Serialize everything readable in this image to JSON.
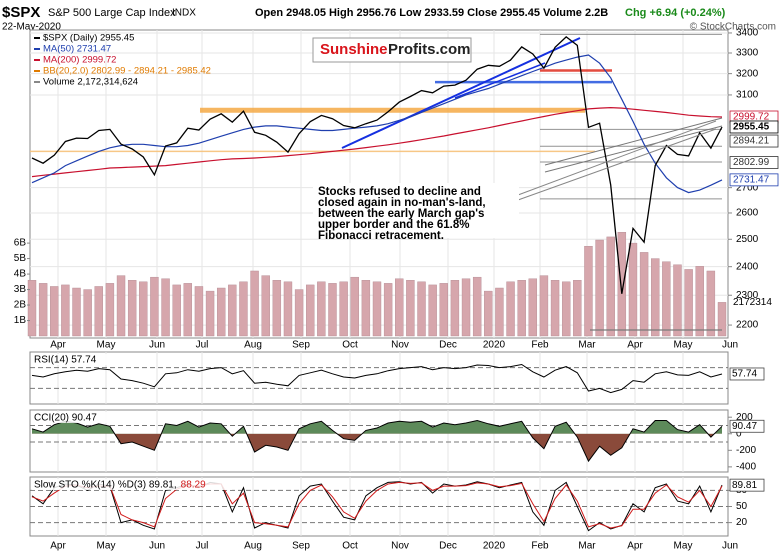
{
  "header": {
    "title": "$SPX",
    "subtitle": "S&P 500 Large Cap Index",
    "exchange": "INDX",
    "date": "22-May-2020",
    "quote": "Open 2948.05 High 2956.76 Low 2933.59 Close 2955.45 Volume 2.2B",
    "change": "Chg +6.94 (+0.24%)",
    "source": "© StockCharts.com",
    "logo": [
      "Sunshine",
      "Profits.com"
    ],
    "annotation": [
      "Stocks refused to decline and",
      "closed again in no-man's-land,",
      "between the early March gap's",
      "upper border and the 61.8%",
      "Fibonacci retracement."
    ]
  },
  "chart_data": [
    {
      "type": "line",
      "log_scale": true,
      "ylim": [
        2158,
        3415
      ],
      "yticks": [
        2200,
        2300,
        2400,
        2500,
        2600,
        2700,
        3100,
        3200,
        3300,
        3400
      ],
      "months": [
        "Apr",
        "May",
        "Jun",
        "Jul",
        "Aug",
        "Sep",
        "Oct",
        "Nov",
        "Dec",
        "2020",
        "Feb",
        "Mar",
        "Apr",
        "May",
        "Jun"
      ],
      "series": [
        {
          "name": "$SPX (Daily) 2955.45",
          "color": "#000000",
          "values": [
            2822,
            2800,
            2834,
            2892,
            2907,
            2905,
            2940,
            2945,
            2881,
            2860,
            2826,
            2752,
            2873,
            2886,
            2950,
            2942,
            2990,
            3014,
            2977,
            3026,
            2932,
            2919,
            2889,
            2847,
            2926,
            2979,
            3007,
            2992,
            2962,
            2952,
            2970,
            2986,
            3023,
            3067,
            3093,
            3120,
            3110,
            3141,
            3146,
            3169,
            3221,
            3240,
            3235,
            3265,
            3330,
            3295,
            3226,
            3328,
            3380,
            3338,
            2954,
            2972,
            2711,
            2305,
            2541,
            2489,
            2790,
            2875,
            2837,
            2831,
            2930,
            2864,
            2955.45
          ]
        },
        {
          "name": "MA(50) 2731.47",
          "color": "#1f3fae",
          "values": [
            2720,
            2740,
            2760,
            2790,
            2810,
            2830,
            2850,
            2865,
            2875,
            2880,
            2880,
            2875,
            2870,
            2870,
            2875,
            2885,
            2900,
            2915,
            2930,
            2945,
            2955,
            2960,
            2960,
            2955,
            2950,
            2945,
            2940,
            2940,
            2945,
            2950,
            2955,
            2960,
            2970,
            2985,
            3000,
            3020,
            3040,
            3060,
            3080,
            3100,
            3115,
            3130,
            3150,
            3170,
            3190,
            3210,
            3230,
            3250,
            3265,
            3280,
            3290,
            3250,
            3180,
            3080,
            2980,
            2880,
            2800,
            2740,
            2700,
            2680,
            2690,
            2710,
            2731.47
          ]
        },
        {
          "name": "MA(200) 2999.72",
          "color": "#c8102e",
          "values": [
            2745,
            2750,
            2755,
            2760,
            2765,
            2770,
            2775,
            2780,
            2782,
            2784,
            2786,
            2788,
            2790,
            2795,
            2800,
            2805,
            2810,
            2815,
            2818,
            2820,
            2822,
            2825,
            2828,
            2832,
            2836,
            2840,
            2845,
            2850,
            2855,
            2860,
            2866,
            2872,
            2878,
            2885,
            2892,
            2900,
            2908,
            2916,
            2925,
            2934,
            2943,
            2952,
            2962,
            2972,
            2982,
            2992,
            3002,
            3012,
            3020,
            3028,
            3036,
            3040,
            3042,
            3040,
            3035,
            3030,
            3025,
            3020,
            3014,
            3008,
            3004,
            3001,
            2999.72
          ]
        }
      ],
      "bb_legend": {
        "text": "BB(20,2.0) 2802.99 - 2894.21 - 2985.42",
        "color": "#e07b00"
      },
      "levels": [
        {
          "value": 3030,
          "color": "#f5a43a"
        },
        {
          "value": 2850,
          "color": "#f7c27a"
        },
        {
          "value": 3215,
          "color": "#e0392b"
        },
        {
          "value": 3160,
          "color": "#2f5de0"
        },
        {
          "value": 3393,
          "color": "#777777"
        },
        {
          "value": 2945,
          "color": "#777777"
        },
        {
          "value": 2872,
          "color": "#777777"
        },
        {
          "value": 2805,
          "color": "#777777"
        },
        {
          "value": 2655,
          "color": "#777777"
        },
        {
          "value": 2184,
          "color": "#777777"
        }
      ],
      "price_labels": [
        2999.72,
        2955.45,
        2894.21,
        2802.99,
        2731.47
      ],
      "price_label_colors": [
        "#c8102e",
        "#000000",
        "#333333",
        "#333333",
        "#1f3fae"
      ],
      "volume": {
        "name": "Volume 2,172,314,624",
        "color": "#d6a6ac",
        "ylim": [
          0,
          6200000000
        ],
        "yticks": [
          {
            "value": 1000000000,
            "label": "1B"
          },
          {
            "value": 2000000000,
            "label": "2B"
          },
          {
            "value": 3000000000,
            "label": "3B"
          },
          {
            "value": 4000000000,
            "label": "4B"
          },
          {
            "value": 5000000000,
            "label": "5B"
          },
          {
            "value": 6000000000,
            "label": "6B"
          }
        ],
        "last_label": "2172314",
        "values": [
          3600000000,
          3400000000,
          3200000000,
          3300000000,
          3100000000,
          3000000000,
          3200000000,
          3400000000,
          3900000000,
          3600000000,
          3500000000,
          3800000000,
          3700000000,
          3300000000,
          3400000000,
          3200000000,
          2900000000,
          3100000000,
          3300000000,
          3500000000,
          4200000000,
          3900000000,
          3600000000,
          3500000000,
          3000000000,
          3300000000,
          3500000000,
          3400000000,
          3500000000,
          3800000000,
          3600000000,
          3500000000,
          3400000000,
          3700000000,
          3600000000,
          3500000000,
          3300000000,
          3400000000,
          3600000000,
          3700000000,
          3800000000,
          2900000000,
          3100000000,
          3500000000,
          3600000000,
          3700000000,
          3900000000,
          3600000000,
          3500000000,
          3600000000,
          5800000000,
          6200000000,
          6400000000,
          6700000000,
          6000000000,
          5400000000,
          5000000000,
          4800000000,
          4600000000,
          4300000000,
          4500000000,
          4200000000,
          2172314624
        ]
      }
    },
    {
      "type": "line",
      "title": "RSI(14) 57.74",
      "ylim": [
        0,
        100
      ],
      "guides": [
        70,
        30
      ],
      "series": [
        {
          "color": "#000000",
          "values": [
            55,
            52,
            58,
            62,
            65,
            63,
            68,
            66,
            48,
            45,
            40,
            33,
            58,
            60,
            66,
            63,
            68,
            70,
            58,
            64,
            40,
            42,
            38,
            35,
            55,
            60,
            65,
            58,
            52,
            50,
            55,
            58,
            64,
            68,
            70,
            72,
            66,
            70,
            68,
            70,
            75,
            74,
            70,
            72,
            76,
            62,
            52,
            65,
            72,
            60,
            25,
            30,
            22,
            28,
            45,
            42,
            58,
            62,
            56,
            55,
            62,
            52,
            57.74
          ]
        }
      ]
    },
    {
      "type": "area",
      "title": "CCI(20) 90.47",
      "ylim": [
        -462,
        287
      ],
      "yticks": [
        200,
        0,
        -200,
        -400
      ],
      "guides": [
        100,
        -100
      ],
      "fill_up": "#5d8a5a",
      "fill_down": "#8a4a3a",
      "series": [
        {
          "color": "#000000",
          "values": [
            60,
            20,
            110,
            150,
            130,
            80,
            120,
            90,
            -120,
            -100,
            -150,
            -200,
            120,
            100,
            150,
            80,
            130,
            120,
            -30,
            90,
            -220,
            -140,
            -160,
            -200,
            60,
            120,
            150,
            40,
            -60,
            -80,
            40,
            70,
            130,
            150,
            140,
            150,
            80,
            130,
            110,
            130,
            160,
            120,
            90,
            120,
            150,
            -50,
            -180,
            90,
            140,
            -40,
            -330,
            -150,
            -260,
            -170,
            60,
            20,
            160,
            160,
            50,
            20,
            110,
            -40,
            90.47
          ]
        }
      ]
    },
    {
      "type": "line",
      "title": "Slow STO %K(14) %D(3) 89.81,",
      "title_d": "88.29",
      "ylim": [
        -5,
        105
      ],
      "yticks": [
        80,
        50,
        20
      ],
      "guides": [
        80,
        50,
        20
      ],
      "series": [
        {
          "color": "#000000",
          "values": [
            70,
            55,
            85,
            92,
            90,
            80,
            92,
            88,
            20,
            25,
            15,
            8,
            80,
            85,
            92,
            85,
            95,
            92,
            40,
            85,
            10,
            20,
            15,
            10,
            70,
            88,
            92,
            60,
            30,
            25,
            70,
            85,
            95,
            96,
            92,
            95,
            75,
            92,
            88,
            90,
            96,
            92,
            85,
            90,
            95,
            40,
            15,
            80,
            95,
            50,
            5,
            20,
            8,
            15,
            55,
            40,
            85,
            92,
            60,
            55,
            88,
            40,
            89.81
          ]
        },
        {
          "color": "#d11a1a",
          "values": [
            68,
            60,
            75,
            88,
            90,
            85,
            88,
            88,
            35,
            25,
            20,
            12,
            65,
            82,
            90,
            88,
            92,
            92,
            55,
            75,
            20,
            18,
            15,
            12,
            55,
            80,
            90,
            68,
            40,
            28,
            60,
            80,
            92,
            95,
            93,
            94,
            80,
            88,
            88,
            89,
            94,
            92,
            87,
            89,
            93,
            55,
            22,
            65,
            90,
            60,
            12,
            18,
            10,
            14,
            45,
            45,
            75,
            90,
            68,
            58,
            80,
            50,
            88.29
          ]
        }
      ]
    }
  ]
}
